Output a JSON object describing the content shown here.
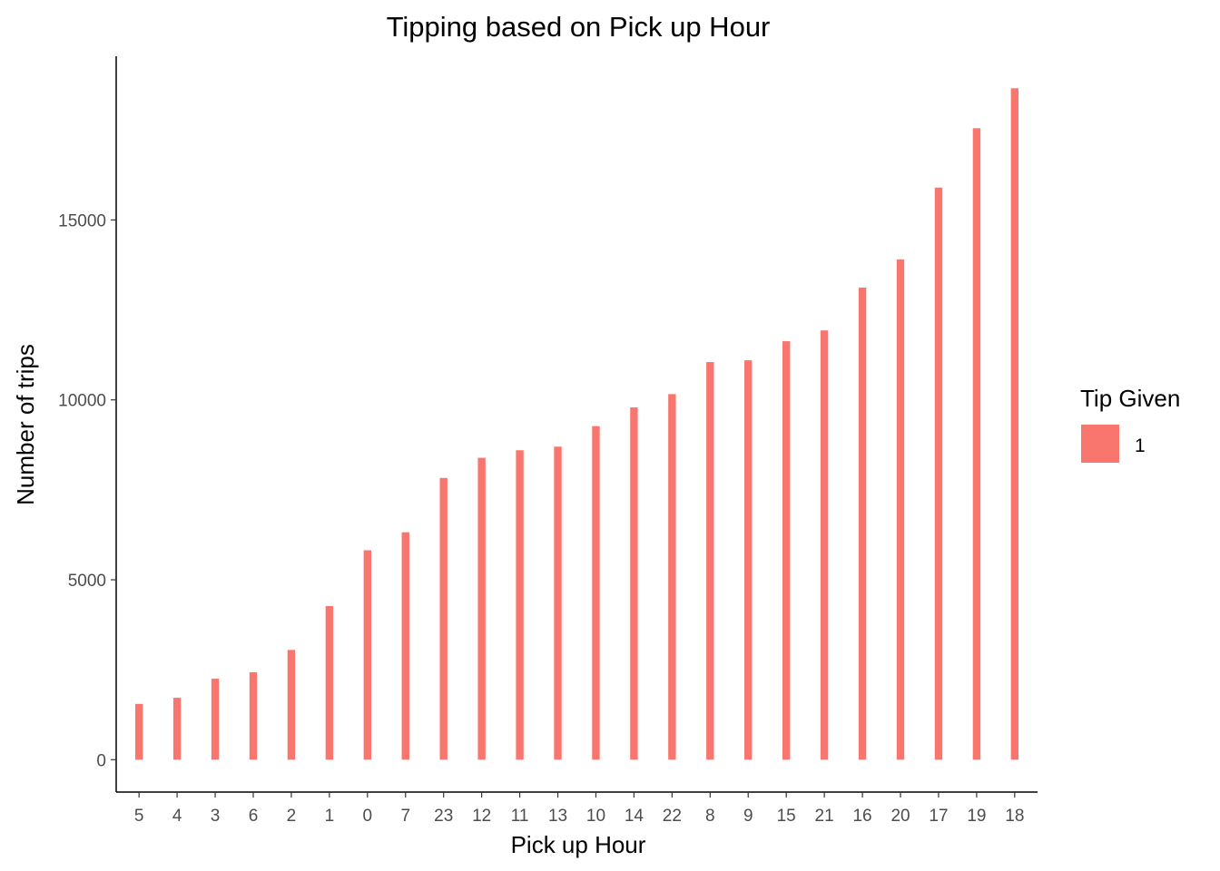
{
  "chart_data": {
    "type": "bar",
    "title": "Tipping based on Pick up Hour",
    "xlabel": "Pick up Hour",
    "ylabel": "Number of trips",
    "categories": [
      "5",
      "4",
      "3",
      "6",
      "2",
      "1",
      "0",
      "7",
      "23",
      "12",
      "11",
      "13",
      "10",
      "14",
      "22",
      "8",
      "9",
      "15",
      "21",
      "16",
      "20",
      "17",
      "19",
      "18"
    ],
    "series": [
      {
        "name": "1",
        "color": "#F8766D",
        "values": [
          1550,
          1720,
          2250,
          2430,
          3050,
          4270,
          5820,
          6320,
          7830,
          8390,
          8600,
          8700,
          9270,
          9790,
          10160,
          11050,
          11100,
          11630,
          11930,
          13120,
          13900,
          15900,
          17550,
          18660
        ]
      }
    ],
    "ylim": [
      -900,
      19550
    ],
    "yticks": [
      0,
      5000,
      10000,
      15000
    ],
    "ytick_labels": [
      "0",
      "5000",
      "10000",
      "15000"
    ],
    "grid": false,
    "legend": {
      "title": "Tip Given",
      "position": "right",
      "entries": [
        {
          "label": "1",
          "color": "#F8766D"
        }
      ]
    }
  }
}
